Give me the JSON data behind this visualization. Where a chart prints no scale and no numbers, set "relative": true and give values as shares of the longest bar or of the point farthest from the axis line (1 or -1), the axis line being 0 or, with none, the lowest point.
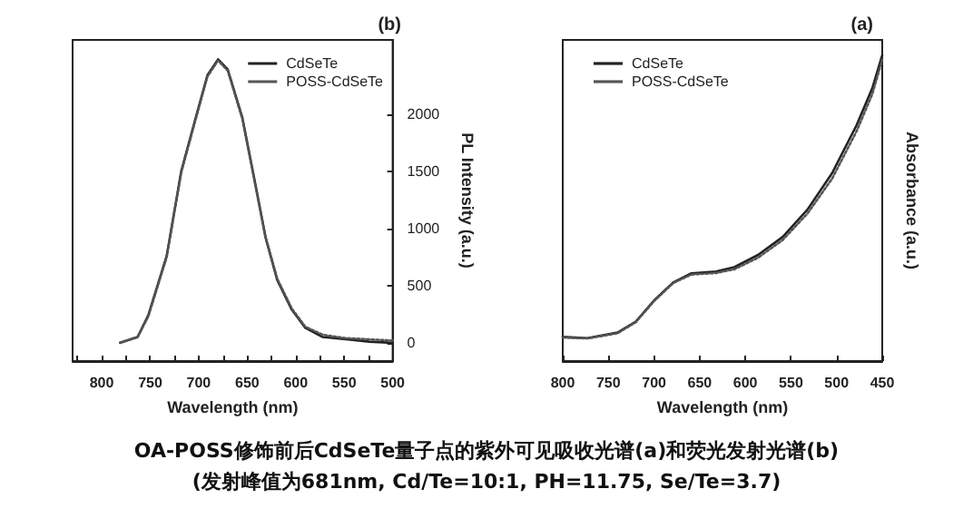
{
  "chart_data": [
    {
      "type": "line",
      "title": "(b)",
      "xlabel": "Wavelength (nm)",
      "ylabel": "PL Intensity (a.u.)",
      "xlim": [
        830,
        500
      ],
      "xticks": [
        500,
        550,
        600,
        650,
        700,
        750,
        800
      ],
      "ylim": [
        -160,
        2650
      ],
      "yticks": [
        0,
        500,
        1000,
        1500,
        2000
      ],
      "legend": "top right",
      "marker": "none",
      "grid": false,
      "annotations": [
        "OA-POSS修饰前后CdSeTe量子点的紫外可见吸收光谱(a)和荧光发射光谱(b)",
        "(发射峰值为681nm, Cd/Te=10:1, PH=11.75, Se/Te=3.7)"
      ],
      "series": [
        {
          "name": "CdSeTe",
          "color": "#222222",
          "line_style": "solid",
          "x": [
            781,
            763,
            752,
            733,
            718,
            703,
            691,
            680,
            670,
            655,
            643,
            631,
            619,
            604,
            590,
            572,
            548,
            524,
            500
          ],
          "values": [
            0,
            50,
            240,
            760,
            1500,
            1970,
            2340,
            2480,
            2390,
            1970,
            1450,
            920,
            550,
            290,
            130,
            50,
            30,
            10,
            0
          ]
        },
        {
          "name": "POSS-CdSeTe",
          "color": "#555555",
          "line_style": "dotted",
          "x": [
            781,
            763,
            752,
            733,
            718,
            703,
            691,
            680,
            670,
            655,
            643,
            631,
            619,
            604,
            590,
            572,
            548,
            524,
            500
          ],
          "values": [
            0,
            50,
            230,
            750,
            1490,
            1960,
            2330,
            2470,
            2380,
            1960,
            1440,
            920,
            560,
            300,
            140,
            70,
            40,
            30,
            20
          ]
        }
      ]
    },
    {
      "type": "line",
      "title": "(a)",
      "xlabel": "Wavelength (nm)",
      "ylabel": "Absorbance (a.u.)",
      "xlim": [
        800,
        450
      ],
      "xticks": [
        450,
        500,
        550,
        600,
        650,
        700,
        750,
        800
      ],
      "relative": true,
      "tick_labels": "x",
      "legend": "top left",
      "marker": "none",
      "grid": false,
      "series": [
        {
          "name": "CdSeTe",
          "color": "#222222",
          "line_style": "solid",
          "x": [
            800,
            773,
            740,
            720,
            700,
            679,
            659,
            632,
            612,
            586,
            559,
            532,
            505,
            478,
            461,
            450
          ],
          "values": [
            0.079,
            0.075,
            0.093,
            0.129,
            0.198,
            0.257,
            0.287,
            0.293,
            0.307,
            0.347,
            0.406,
            0.495,
            0.614,
            0.772,
            0.891,
            1
          ]
        },
        {
          "name": "POSS-CdSeTe",
          "color": "#555555",
          "line_style": "dotted",
          "x": [
            800,
            773,
            740,
            720,
            700,
            679,
            659,
            632,
            612,
            586,
            559,
            532,
            505,
            478,
            461,
            450
          ],
          "values": [
            0.077,
            0.074,
            0.091,
            0.127,
            0.196,
            0.255,
            0.283,
            0.288,
            0.3,
            0.338,
            0.396,
            0.482,
            0.596,
            0.752,
            0.872,
            0.985
          ]
        }
      ]
    }
  ]
}
